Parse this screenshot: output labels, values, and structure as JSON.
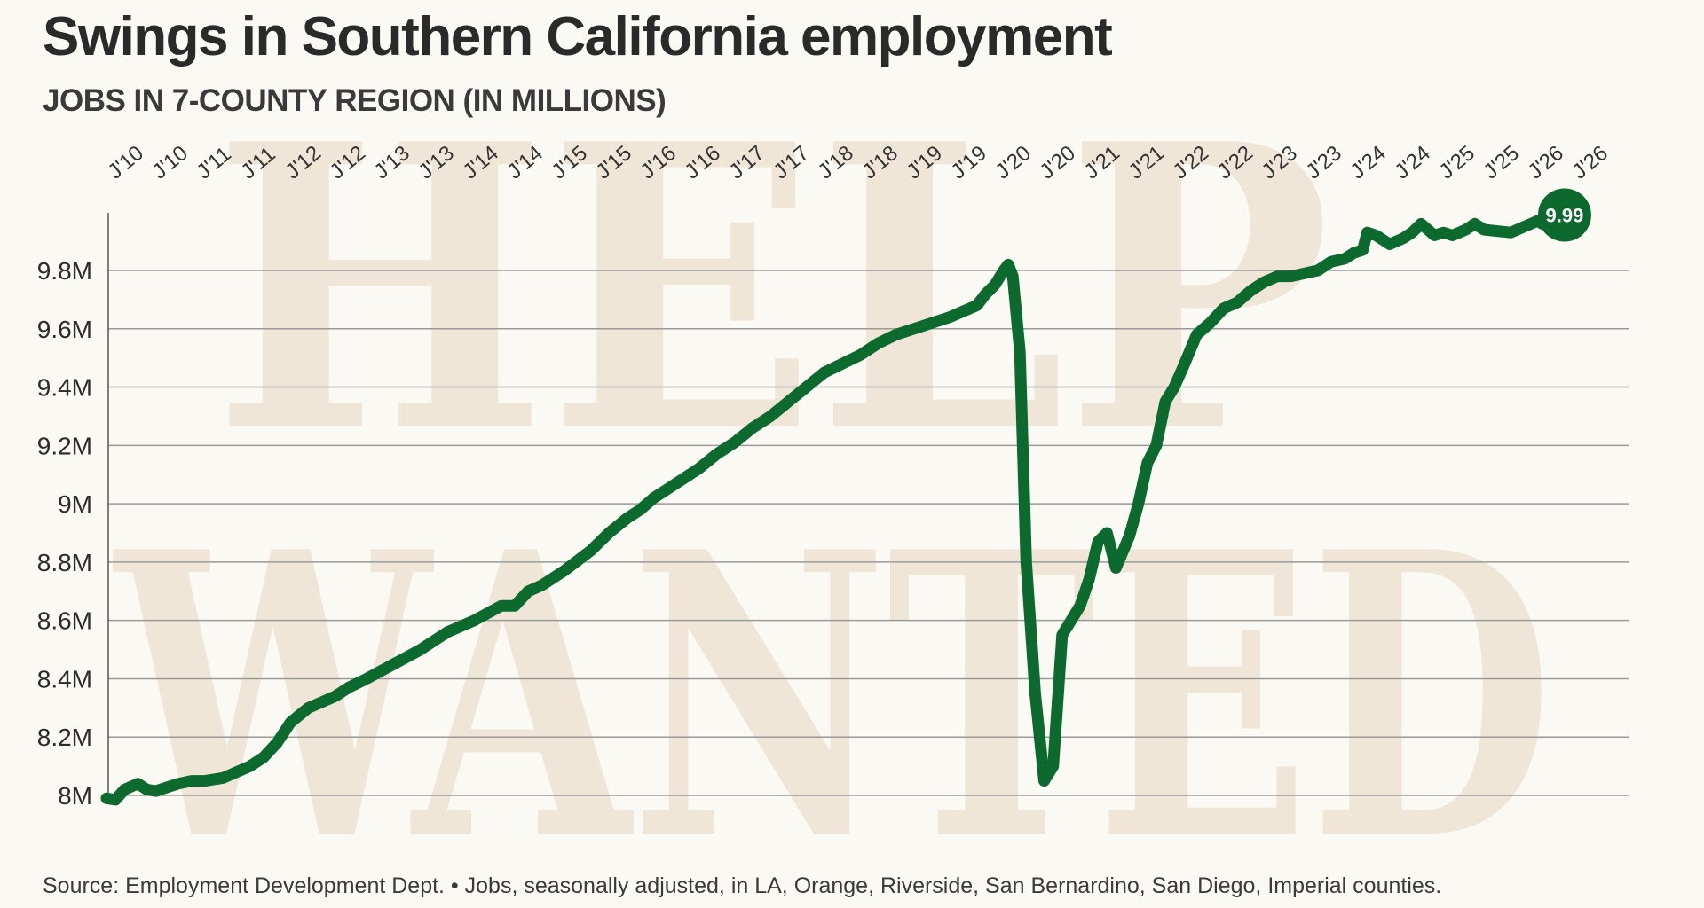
{
  "watermark": {
    "line1": "HELP",
    "line2": "WANTED"
  },
  "chart_data": {
    "type": "line",
    "title": "Swings in Southern California employment",
    "subtitle": "JOBS IN 7-COUNTY REGION (IN MILLIONS)",
    "source": "Source: Employment Development Dept. • Jobs, seasonally adjusted, in LA, Orange, Riverside, San Bernardino, San Diego, Imperial counties.",
    "x_tick_labels": [
      "J'10",
      "J'10",
      "J'11",
      "J'11",
      "J'12",
      "J'12",
      "J'13",
      "J'13",
      "J'14",
      "J'14",
      "J'15",
      "J'15",
      "J'16",
      "J'16",
      "J'17",
      "J'17",
      "J'18",
      "J'18",
      "J'19",
      "J'19",
      "J'20",
      "J'20",
      "J'21",
      "J'21",
      "J'22",
      "J'22",
      "J'23",
      "J'23",
      "J'24",
      "J'24",
      "J'25",
      "J'25",
      "J'26",
      "J'26"
    ],
    "y_tick_labels": [
      "8M",
      "8.2M",
      "8.4M",
      "8.6M",
      "8.8M",
      "9M",
      "9.2M",
      "9.4M",
      "9.6M",
      "9.8M"
    ],
    "y_ticks": [
      8.0,
      8.2,
      8.4,
      8.6,
      8.8,
      9.0,
      9.2,
      9.4,
      9.6,
      9.8
    ],
    "ylim": [
      8.0,
      10.0
    ],
    "xlim": [
      2010.0,
      2026.3
    ],
    "grid": true,
    "end_label": "9.99",
    "line_color": "#0d6a2e",
    "series": [
      {
        "name": "Jobs",
        "x": [
          2010.0,
          2010.1,
          2010.2,
          2010.35,
          2010.45,
          2010.55,
          2010.7,
          2010.8,
          2010.95,
          2011.1,
          2011.3,
          2011.45,
          2011.6,
          2011.75,
          2011.9,
          2012.05,
          2012.25,
          2012.4,
          2012.55,
          2012.7,
          2012.9,
          2013.2,
          2013.5,
          2013.8,
          2014.1,
          2014.4,
          2014.55,
          2014.7,
          2014.85,
          2015.1,
          2015.4,
          2015.6,
          2015.8,
          2015.95,
          2016.1,
          2016.25,
          2016.35,
          2016.45,
          2016.6,
          2016.8,
          2017.0,
          2017.2,
          2017.4,
          2017.6,
          2017.8,
          2018.0,
          2018.2,
          2018.4,
          2018.6,
          2018.8,
          2019.0,
          2019.2,
          2019.4,
          2019.55,
          2019.7,
          2019.8,
          2019.9,
          2020.0,
          2020.05,
          2020.1,
          2020.18,
          2020.25,
          2020.35,
          2020.45,
          2020.55,
          2020.65,
          2020.75,
          2020.85,
          2020.95,
          2021.05,
          2021.15,
          2021.25,
          2021.4,
          2021.5,
          2021.6,
          2021.7,
          2021.8,
          2021.9,
          2022.0,
          2022.15,
          2022.3,
          2022.45,
          2022.6,
          2022.75,
          2022.9,
          2023.05,
          2023.2,
          2023.35,
          2023.5,
          2023.65,
          2023.8,
          2023.9,
          2024.0,
          2024.05,
          2024.15,
          2024.3,
          2024.45,
          2024.55,
          2024.65,
          2024.8,
          2024.9,
          2025.0,
          2025.15,
          2025.25,
          2025.35,
          2025.5,
          2025.65,
          2025.8,
          2025.95,
          2026.0,
          2026.1,
          2026.25
        ],
        "values": [
          7.99,
          7.985,
          8.02,
          8.04,
          8.02,
          8.015,
          8.03,
          8.04,
          8.05,
          8.05,
          8.06,
          8.08,
          8.1,
          8.13,
          8.18,
          8.25,
          8.3,
          8.32,
          8.34,
          8.37,
          8.4,
          8.45,
          8.5,
          8.56,
          8.6,
          8.65,
          8.65,
          8.7,
          8.72,
          8.77,
          8.84,
          8.9,
          8.95,
          8.98,
          9.02,
          9.05,
          9.07,
          9.09,
          9.12,
          9.17,
          9.21,
          9.26,
          9.3,
          9.35,
          9.4,
          9.45,
          9.48,
          9.51,
          9.55,
          9.58,
          9.6,
          9.62,
          9.64,
          9.66,
          9.68,
          9.72,
          9.75,
          9.8,
          9.82,
          9.78,
          9.52,
          8.8,
          8.35,
          8.05,
          8.1,
          8.55,
          8.6,
          8.65,
          8.74,
          8.87,
          8.9,
          8.78,
          8.89,
          9.0,
          9.14,
          9.2,
          9.35,
          9.4,
          9.47,
          9.58,
          9.62,
          9.67,
          9.69,
          9.73,
          9.76,
          9.78,
          9.78,
          9.79,
          9.8,
          9.83,
          9.84,
          9.86,
          9.87,
          9.93,
          9.92,
          9.89,
          9.91,
          9.93,
          9.96,
          9.92,
          9.93,
          9.92,
          9.94,
          9.96,
          9.94,
          9.935,
          9.93,
          9.95,
          9.97,
          9.96,
          9.985,
          9.99
        ]
      }
    ]
  }
}
